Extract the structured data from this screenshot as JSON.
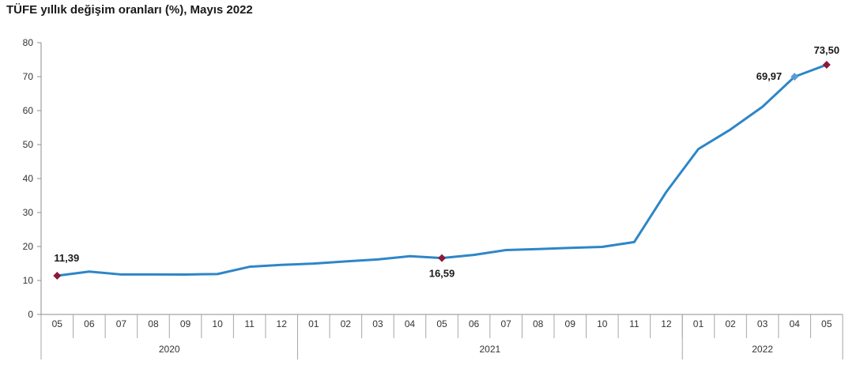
{
  "chart_data": {
    "type": "line",
    "title": "TÜFE yıllık değişim oranları (%), Mayıs 2022",
    "xlabel": "",
    "ylabel": "",
    "ylim": [
      0,
      80
    ],
    "y_ticks": [
      "0",
      "10",
      "20",
      "30",
      "40",
      "50",
      "60",
      "70",
      "80"
    ],
    "grid": false,
    "categories": [
      "05",
      "06",
      "07",
      "08",
      "09",
      "10",
      "11",
      "12",
      "01",
      "02",
      "03",
      "04",
      "05",
      "06",
      "07",
      "08",
      "09",
      "10",
      "11",
      "12",
      "01",
      "02",
      "03",
      "04",
      "05"
    ],
    "years": [
      {
        "label": "2020",
        "start": 0,
        "end": 7
      },
      {
        "label": "2021",
        "start": 8,
        "end": 19
      },
      {
        "label": "2022",
        "start": 20,
        "end": 24
      }
    ],
    "series": [
      {
        "color": "#2e86c8",
        "values": [
          11.39,
          12.62,
          11.76,
          11.77,
          11.75,
          11.89,
          14.03,
          14.6,
          14.97,
          15.61,
          16.19,
          17.14,
          16.59,
          17.53,
          18.95,
          19.25,
          19.58,
          19.89,
          21.31,
          36.08,
          48.69,
          54.44,
          61.14,
          69.97,
          73.5
        ]
      }
    ],
    "annotations": [
      {
        "index": 0,
        "text": "11,39",
        "position": "above"
      },
      {
        "index": 12,
        "text": "16,59",
        "position": "below"
      },
      {
        "index": 23,
        "text": "69,97",
        "position": "left"
      },
      {
        "index": 24,
        "text": "73,50",
        "position": "above"
      }
    ],
    "marker_color": "#8b1a3a"
  }
}
